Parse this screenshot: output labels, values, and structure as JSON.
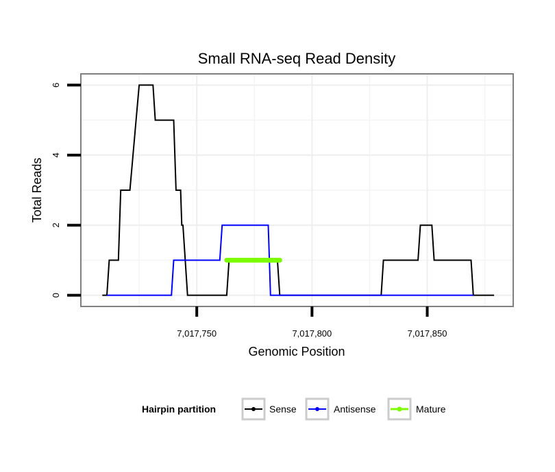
{
  "chart_data": {
    "type": "line",
    "title": "Small RNA-seq Read Density",
    "xlabel": "Genomic Position",
    "ylabel": "Total Reads",
    "xlim": [
      7017700,
      7017887
    ],
    "ylim": [
      -0.3,
      6.3
    ],
    "x_ticks": [
      7017750,
      7017800,
      7017850
    ],
    "x_tick_labels": [
      "7,017,750",
      "7,017,800",
      "7,017,850"
    ],
    "y_ticks": [
      0,
      2,
      4,
      6
    ],
    "y_tick_labels": [
      "0",
      "2",
      "4",
      "6"
    ],
    "grid": true,
    "legend": {
      "title": "Hairpin partition",
      "position": "bottom"
    },
    "series": [
      {
        "name": "Sense",
        "color": "#000000",
        "x": [
          7017709,
          7017711,
          7017712,
          7017716,
          7017717,
          7017721,
          7017725,
          7017731,
          7017732,
          7017740,
          7017741,
          7017743,
          7017743.5,
          7017744,
          7017746,
          7017763,
          7017764,
          7017785,
          7017786,
          7017830,
          7017831,
          7017846,
          7017847,
          7017852,
          7017853,
          7017869,
          7017870,
          7017879
        ],
        "y": [
          0,
          0,
          1,
          1,
          3,
          3,
          6,
          6,
          5,
          5,
          3,
          3,
          2,
          2,
          0,
          0,
          1,
          1,
          0,
          0,
          1,
          1,
          2,
          2,
          1,
          1,
          0,
          0
        ]
      },
      {
        "name": "Antisense",
        "color": "#0000ff",
        "x": [
          7017711,
          7017739,
          7017740,
          7017760,
          7017761,
          7017781,
          7017782,
          7017870
        ],
        "y": [
          0,
          0,
          1,
          1,
          2,
          2,
          0,
          0
        ]
      },
      {
        "name": "Mature",
        "color": "#7cfc00",
        "x": [
          7017763,
          7017786
        ],
        "y": [
          1,
          1
        ]
      }
    ]
  }
}
